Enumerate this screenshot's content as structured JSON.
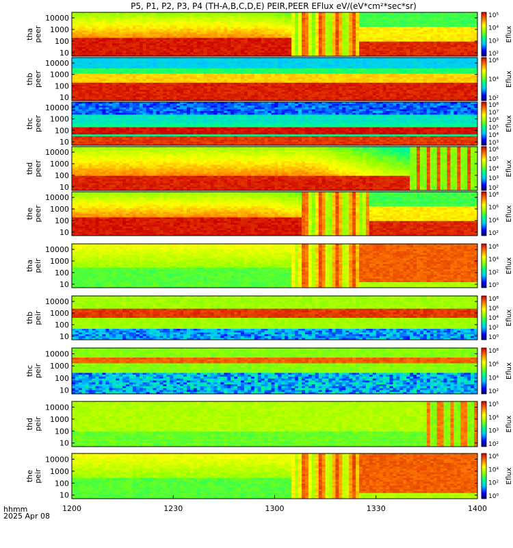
{
  "title": "P5, P1, P2, P3, P4 (TH-A,B,C,D,E) PEIR,PEER EFlux eV/(eV*cm²*sec*sr)",
  "footer": {
    "time_label": "hhmm",
    "date_label": "2025 Apr 08"
  },
  "colorbar_label": "Eflux",
  "chart_data": {
    "type": "heatmap",
    "x_axis": {
      "range": [
        "1200",
        "1400"
      ],
      "ticks": [
        "1200",
        "1230",
        "1300",
        "1330",
        "1400"
      ],
      "tick_values_min": [
        0,
        30,
        60,
        90,
        120
      ]
    },
    "y_axis": {
      "scale": "log",
      "unit": "eV",
      "range": [
        5,
        30000
      ],
      "ticks": [
        "10",
        "100",
        "1000",
        "10000"
      ]
    },
    "panels": [
      {
        "probe": "tha",
        "species": "peer",
        "label_1": "tha",
        "label_2": "peer",
        "cbar_ticks": [
          "10²",
          "10³",
          "10⁴",
          "10⁵"
        ],
        "cbar_exp": [
          2,
          3,
          4,
          5
        ],
        "flux_profile": "electron_a",
        "high_activity_start_min": 85
      },
      {
        "probe": "thb",
        "species": "peer",
        "label_1": "thb",
        "label_2": "peer",
        "cbar_ticks": [
          "10²",
          "10⁴",
          "10⁶"
        ],
        "cbar_exp": [
          2,
          4,
          6
        ],
        "flux_profile": "electron_b"
      },
      {
        "probe": "thc",
        "species": "peer",
        "label_1": "thc",
        "label_2": "peer",
        "cbar_ticks": [
          "10³",
          "10⁴",
          "10⁵",
          "10⁶",
          "10⁷",
          "10⁸"
        ],
        "cbar_exp": [
          3,
          4,
          5,
          6,
          7,
          8
        ],
        "flux_profile": "electron_c"
      },
      {
        "probe": "thd",
        "species": "peer",
        "label_1": "thd",
        "label_2": "peer",
        "cbar_ticks": [
          "10²",
          "10³",
          "10⁴",
          "10⁵",
          "10⁶"
        ],
        "cbar_exp": [
          2,
          3,
          4,
          5,
          6
        ],
        "flux_profile": "electron_d",
        "high_activity_start_min": 100
      },
      {
        "probe": "the",
        "species": "peer",
        "label_1": "the",
        "label_2": "peer",
        "cbar_ticks": [
          "10²",
          "10⁴",
          "10⁶",
          "10⁸"
        ],
        "cbar_exp": [
          2,
          4,
          6,
          8
        ],
        "flux_profile": "electron_e",
        "high_activity_start_min": 88
      },
      {
        "probe": "tha",
        "species": "peir",
        "label_1": "tha",
        "label_2": "peir",
        "cbar_ticks": [
          "10⁰",
          "10²",
          "10⁴",
          "10⁶"
        ],
        "cbar_exp": [
          0,
          2,
          4,
          6
        ],
        "flux_profile": "ion_a",
        "high_activity_start_min": 85
      },
      {
        "probe": "thb",
        "species": "peir",
        "label_1": "thb",
        "label_2": "peir",
        "cbar_ticks": [
          "10⁰",
          "10²",
          "10⁴",
          "10⁶",
          "10⁸"
        ],
        "cbar_exp": [
          0,
          2,
          4,
          6,
          8
        ],
        "flux_profile": "ion_b"
      },
      {
        "probe": "thc",
        "species": "peir",
        "label_1": "thc",
        "label_2": "peir",
        "cbar_ticks": [
          "10²",
          "10⁴",
          "10⁶",
          "10⁸"
        ],
        "cbar_exp": [
          2,
          4,
          6,
          8
        ],
        "flux_profile": "ion_c"
      },
      {
        "probe": "thd",
        "species": "peir",
        "label_1": "thd",
        "label_2": "peir",
        "cbar_ticks": [
          "10²",
          "10³",
          "10⁴",
          "10⁵"
        ],
        "cbar_exp": [
          2,
          3,
          4,
          5
        ],
        "flux_profile": "ion_d",
        "high_activity_start_min": 105
      },
      {
        "probe": "the",
        "species": "peir",
        "label_1": "the",
        "label_2": "peir",
        "cbar_ticks": [
          "10⁰",
          "10²",
          "10⁴",
          "10⁶"
        ],
        "cbar_exp": [
          0,
          2,
          4,
          6
        ],
        "flux_profile": "ion_e",
        "high_activity_start_min": 85
      }
    ],
    "grid": false,
    "legend": "colorbar-right-of-each-panel"
  }
}
